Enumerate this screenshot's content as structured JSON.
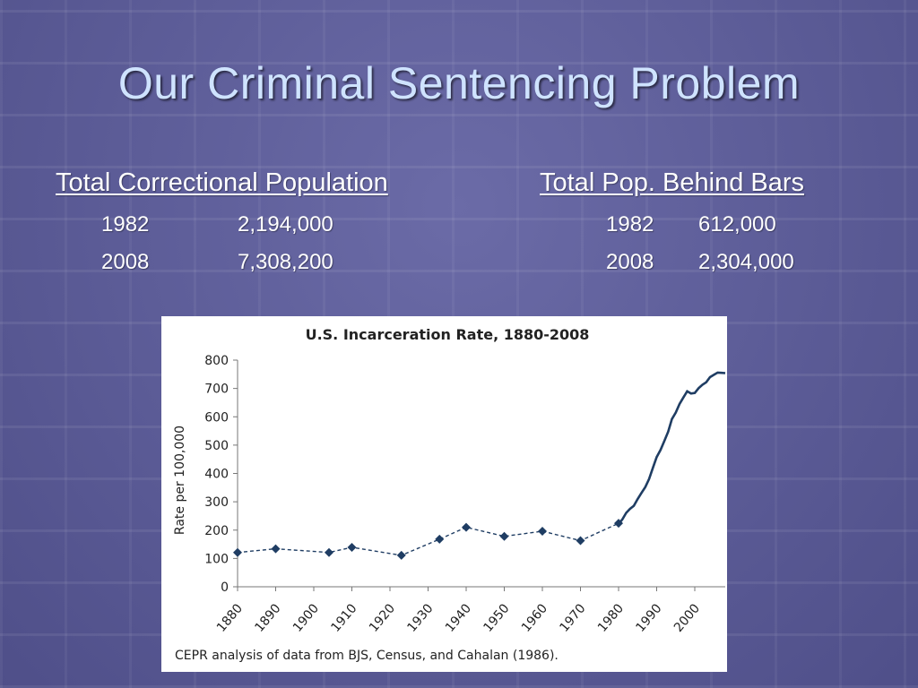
{
  "slide": {
    "title": "Our Criminal Sentencing Problem"
  },
  "stats": {
    "left": {
      "heading": "Total Correctional Population",
      "rows": [
        {
          "year": "1982",
          "value": "2,194,000"
        },
        {
          "year": "2008",
          "value": "7,308,200"
        }
      ]
    },
    "right": {
      "heading": "Total Pop. Behind Bars",
      "rows": [
        {
          "year": "1982",
          "value": "612,000"
        },
        {
          "year": "2008",
          "value": "2,304,000"
        }
      ]
    }
  },
  "chart_data": {
    "type": "line",
    "title": "U.S. Incarceration Rate, 1880-2008",
    "ylabel": "Rate per 100,000",
    "xlabel": "",
    "source": "CEPR analysis of data from BJS, Census, and Cahalan (1986).",
    "xlim": [
      1880,
      2008
    ],
    "ylim": [
      0,
      800
    ],
    "x_ticks": [
      "1880",
      "1890",
      "1900",
      "1910",
      "1920",
      "1930",
      "1940",
      "1950",
      "1960",
      "1970",
      "1980",
      "1990",
      "2000"
    ],
    "y_ticks": [
      "0",
      "100",
      "200",
      "300",
      "400",
      "500",
      "600",
      "700",
      "800"
    ],
    "grid": false,
    "legend": "none",
    "line_color": "#1f3d63",
    "series": [
      {
        "style": "dashed-markers",
        "points": [
          {
            "x": 1880,
            "y": 121
          },
          {
            "x": 1890,
            "y": 134
          },
          {
            "x": 1904,
            "y": 121
          },
          {
            "x": 1910,
            "y": 139
          },
          {
            "x": 1923,
            "y": 111
          },
          {
            "x": 1933,
            "y": 168
          },
          {
            "x": 1940,
            "y": 210
          },
          {
            "x": 1950,
            "y": 178
          },
          {
            "x": 1960,
            "y": 196
          },
          {
            "x": 1970,
            "y": 163
          },
          {
            "x": 1980,
            "y": 224
          }
        ]
      },
      {
        "style": "solid",
        "points": [
          {
            "x": 1980,
            "y": 221
          },
          {
            "x": 1981,
            "y": 238
          },
          {
            "x": 1982,
            "y": 261
          },
          {
            "x": 1983,
            "y": 275
          },
          {
            "x": 1984,
            "y": 286
          },
          {
            "x": 1985,
            "y": 310
          },
          {
            "x": 1986,
            "y": 331
          },
          {
            "x": 1987,
            "y": 352
          },
          {
            "x": 1988,
            "y": 380
          },
          {
            "x": 1989,
            "y": 420
          },
          {
            "x": 1990,
            "y": 458
          },
          {
            "x": 1991,
            "y": 483
          },
          {
            "x": 1992,
            "y": 514
          },
          {
            "x": 1993,
            "y": 547
          },
          {
            "x": 1994,
            "y": 592
          },
          {
            "x": 1995,
            "y": 615
          },
          {
            "x": 1996,
            "y": 645
          },
          {
            "x": 1997,
            "y": 668
          },
          {
            "x": 1998,
            "y": 690
          },
          {
            "x": 1999,
            "y": 682
          },
          {
            "x": 2000,
            "y": 684
          },
          {
            "x": 2001,
            "y": 701
          },
          {
            "x": 2002,
            "y": 713
          },
          {
            "x": 2003,
            "y": 722
          },
          {
            "x": 2004,
            "y": 740
          },
          {
            "x": 2005,
            "y": 748
          },
          {
            "x": 2006,
            "y": 756
          },
          {
            "x": 2007,
            "y": 755
          },
          {
            "x": 2008,
            "y": 754
          }
        ]
      }
    ]
  }
}
